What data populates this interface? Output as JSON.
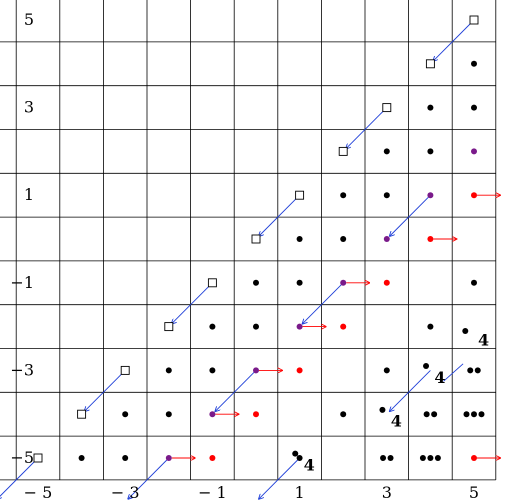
{
  "grid": {
    "x_range": [
      -6,
      5
    ],
    "y_range": [
      -5,
      5
    ]
  },
  "x_ticks": [
    {
      "value": -5,
      "label": "− 5"
    },
    {
      "value": -3,
      "label": "− 3"
    },
    {
      "value": -1,
      "label": "− 1"
    },
    {
      "value": 1,
      "label": "1"
    },
    {
      "value": 3,
      "label": "3"
    },
    {
      "value": 5,
      "label": "5"
    }
  ],
  "y_ticks": [
    {
      "value": 5,
      "label": "5"
    },
    {
      "value": 3,
      "label": "3"
    },
    {
      "value": 1,
      "label": "1"
    },
    {
      "value": -1,
      "label": "−1"
    },
    {
      "value": -3,
      "label": "−3"
    },
    {
      "value": -5,
      "label": "−5"
    }
  ],
  "colors": {
    "black": "#000000",
    "purple": "#7a1a8a",
    "red": "#ff0000",
    "blue": "#1f3fd8"
  },
  "squares": [
    [
      5,
      5
    ],
    [
      3,
      3
    ],
    [
      1,
      1
    ],
    [
      -1,
      -1
    ],
    [
      -3,
      -3
    ],
    [
      -5,
      -5
    ],
    [
      4,
      4
    ],
    [
      2,
      2
    ],
    [
      0,
      0
    ],
    [
      -2,
      -2
    ],
    [
      -4,
      -4
    ]
  ],
  "blue_arrows": [
    [
      [
        5,
        5
      ],
      [
        4,
        4
      ]
    ],
    [
      [
        3,
        3
      ],
      [
        2,
        2
      ]
    ],
    [
      [
        1,
        1
      ],
      [
        0,
        0
      ]
    ],
    [
      [
        -1,
        -1
      ],
      [
        -2,
        -2
      ]
    ],
    [
      [
        -3,
        -3
      ],
      [
        -4,
        -4
      ]
    ],
    [
      [
        -5,
        -5
      ],
      [
        -6,
        -6
      ]
    ],
    [
      [
        4,
        1
      ],
      [
        3,
        0
      ]
    ],
    [
      [
        2,
        -1
      ],
      [
        1,
        -2
      ]
    ],
    [
      [
        0,
        -3
      ],
      [
        -1,
        -4
      ]
    ],
    [
      [
        -2,
        -5
      ],
      [
        -3,
        -6
      ]
    ],
    [
      [
        4,
        -3
      ],
      [
        3,
        -4
      ]
    ],
    [
      [
        1,
        -5
      ],
      [
        0,
        -6
      ]
    ]
  ],
  "red_arrows": [
    [
      4,
      0
    ],
    [
      2,
      -1
    ],
    [
      1,
      -2
    ],
    [
      0,
      -3
    ],
    [
      -1,
      -4
    ],
    [
      -2,
      -5
    ],
    [
      5,
      1
    ],
    [
      5,
      -5
    ]
  ],
  "dots": [
    {
      "at": [
        5,
        4
      ],
      "color": "black",
      "count": 1
    },
    {
      "at": [
        4,
        3
      ],
      "color": "black",
      "count": 1
    },
    {
      "at": [
        5,
        3
      ],
      "color": "black",
      "count": 1
    },
    {
      "at": [
        3,
        2
      ],
      "color": "black",
      "count": 1
    },
    {
      "at": [
        4,
        2
      ],
      "color": "black",
      "count": 1
    },
    {
      "at": [
        5,
        2
      ],
      "color": "purple",
      "count": 1
    },
    {
      "at": [
        2,
        1
      ],
      "color": "black",
      "count": 1
    },
    {
      "at": [
        3,
        1
      ],
      "color": "black",
      "count": 1
    },
    {
      "at": [
        4,
        1
      ],
      "color": "purple",
      "count": 1
    },
    {
      "at": [
        5,
        1
      ],
      "color": "red",
      "count": 1
    },
    {
      "at": [
        1,
        0
      ],
      "color": "black",
      "count": 1
    },
    {
      "at": [
        2,
        0
      ],
      "color": "black",
      "count": 1
    },
    {
      "at": [
        3,
        0
      ],
      "color": "purple",
      "count": 1
    },
    {
      "at": [
        4,
        0
      ],
      "color": "red",
      "count": 1
    },
    {
      "at": [
        0,
        -1
      ],
      "color": "black",
      "count": 1
    },
    {
      "at": [
        1,
        -1
      ],
      "color": "black",
      "count": 1
    },
    {
      "at": [
        2,
        -1
      ],
      "color": "purple",
      "count": 1
    },
    {
      "at": [
        3,
        -1
      ],
      "color": "red",
      "count": 1
    },
    {
      "at": [
        5,
        -1
      ],
      "color": "black",
      "count": 1
    },
    {
      "at": [
        -1,
        -2
      ],
      "color": "black",
      "count": 1
    },
    {
      "at": [
        0,
        -2
      ],
      "color": "black",
      "count": 1
    },
    {
      "at": [
        1,
        -2
      ],
      "color": "purple",
      "count": 1
    },
    {
      "at": [
        2,
        -2
      ],
      "color": "red",
      "count": 1
    },
    {
      "at": [
        4,
        -2
      ],
      "color": "black",
      "count": 1
    },
    {
      "at": [
        -2,
        -3
      ],
      "color": "black",
      "count": 1
    },
    {
      "at": [
        -1,
        -3
      ],
      "color": "black",
      "count": 1
    },
    {
      "at": [
        0,
        -3
      ],
      "color": "purple",
      "count": 1
    },
    {
      "at": [
        1,
        -3
      ],
      "color": "red",
      "count": 1
    },
    {
      "at": [
        3,
        -3
      ],
      "color": "black",
      "count": 1
    },
    {
      "at": [
        5,
        -3
      ],
      "color": "black",
      "count": 2
    },
    {
      "at": [
        -3,
        -4
      ],
      "color": "black",
      "count": 1
    },
    {
      "at": [
        -2,
        -4
      ],
      "color": "black",
      "count": 1
    },
    {
      "at": [
        -1,
        -4
      ],
      "color": "purple",
      "count": 1
    },
    {
      "at": [
        0,
        -4
      ],
      "color": "red",
      "count": 1
    },
    {
      "at": [
        2,
        -4
      ],
      "color": "black",
      "count": 1
    },
    {
      "at": [
        4,
        -4
      ],
      "color": "black",
      "count": 2
    },
    {
      "at": [
        5,
        -4
      ],
      "color": "black",
      "count": 3
    },
    {
      "at": [
        -4,
        -5
      ],
      "color": "black",
      "count": 1
    },
    {
      "at": [
        -3,
        -5
      ],
      "color": "black",
      "count": 1
    },
    {
      "at": [
        -2,
        -5
      ],
      "color": "purple",
      "count": 1
    },
    {
      "at": [
        -1,
        -5
      ],
      "color": "red",
      "count": 1
    },
    {
      "at": [
        1,
        -5
      ],
      "color": "black",
      "count": 1
    },
    {
      "at": [
        3,
        -5
      ],
      "color": "black",
      "count": 2
    },
    {
      "at": [
        4,
        -5
      ],
      "color": "black",
      "count": 3
    },
    {
      "at": [
        5,
        -5
      ],
      "color": "red",
      "count": 1
    }
  ],
  "offset_dots": [
    [
      4.8,
      -2.1
    ],
    [
      3.9,
      -2.9
    ],
    [
      2.9,
      -3.9
    ],
    [
      0.9,
      -4.9
    ]
  ],
  "labels": [
    {
      "at": [
        5,
        -2.25
      ],
      "text": "4"
    },
    {
      "at": [
        4,
        -3.1
      ],
      "text": "4"
    },
    {
      "at": [
        3,
        -4.1
      ],
      "text": "4"
    },
    {
      "at": [
        1,
        -5.1
      ],
      "text": "4"
    }
  ],
  "label_arrows": [
    [
      [
        4.75,
        -2.85
      ],
      [
        4.3,
        -3.25
      ]
    ]
  ]
}
